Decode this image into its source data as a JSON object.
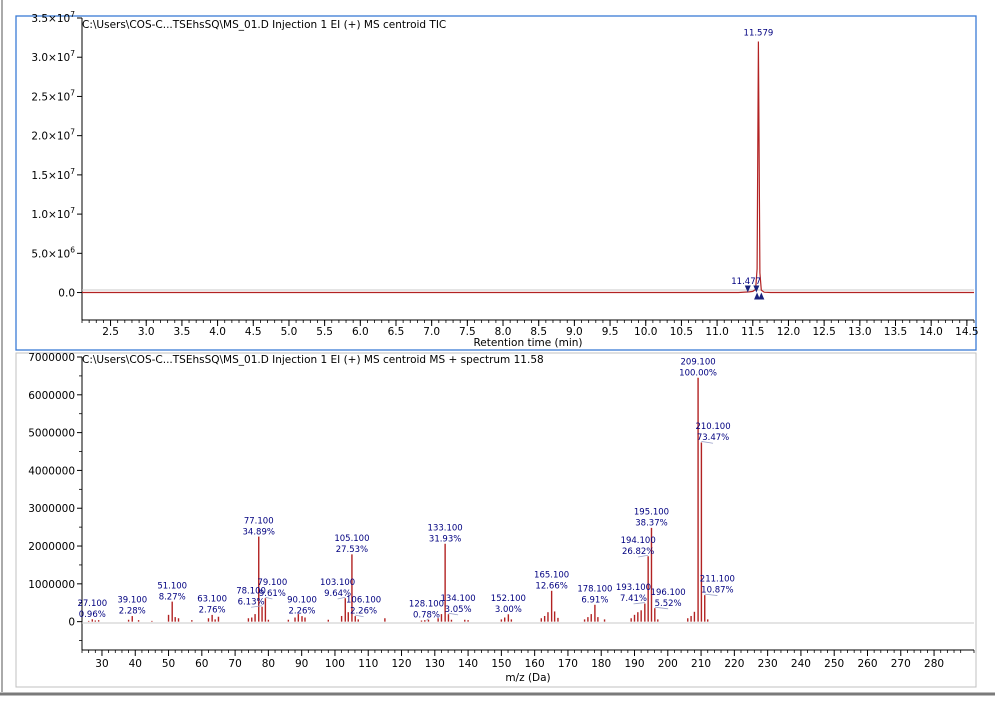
{
  "colors": {
    "trace": "#b22222",
    "label": "#000080",
    "marker": "#1a237e",
    "panel_border": "#3a7bd5"
  },
  "chart_data": [
    {
      "type": "line",
      "title": "C:\\Users\\COS-C...TSEhsSQ\\MS_01.D Injection 1 EI (+) MS centroid TIC",
      "xlabel": "Retention time (min)",
      "ylabel": "",
      "xlim": [
        2.1,
        14.6
      ],
      "ylim": [
        -3500000,
        35000000
      ],
      "x_ticks": [
        2.5,
        3.0,
        3.5,
        4.0,
        4.5,
        5.0,
        5.5,
        6.0,
        6.5,
        7.0,
        7.5,
        8.0,
        8.5,
        9.0,
        9.5,
        10.0,
        10.5,
        11.0,
        11.5,
        12.0,
        12.5,
        13.0,
        13.5,
        14.0,
        14.5
      ],
      "x_tick_labels": [
        "2.5",
        "3.0",
        "3.5",
        "4.0",
        "4.5",
        "5.0",
        "5.5",
        "6.0",
        "6.5",
        "7.0",
        "7.5",
        "8.0",
        "8.5",
        "9.0",
        "9.5",
        "10.0",
        "10.5",
        "11.0",
        "11.5",
        "12.0",
        "12.5",
        "13.0",
        "13.5",
        "14.0",
        "14.5"
      ],
      "y_ticks": [
        {
          "value": 35000000,
          "mant": "3.5",
          "exp": "7"
        },
        {
          "value": 30000000,
          "mant": "3.0",
          "exp": "7"
        },
        {
          "value": 25000000,
          "mant": "2.5",
          "exp": "7"
        },
        {
          "value": 20000000,
          "mant": "2.0",
          "exp": "7"
        },
        {
          "value": 15000000,
          "mant": "1.5",
          "exp": "7"
        },
        {
          "value": 10000000,
          "mant": "1.0",
          "exp": "7"
        },
        {
          "value": 5000000,
          "mant": "5.0",
          "exp": "6"
        },
        {
          "value": 0,
          "mant": "0.0",
          "exp": ""
        }
      ],
      "series": [
        {
          "x": [
            2.1,
            11.3,
            11.45,
            11.5,
            11.54,
            11.56,
            11.579,
            11.6,
            11.62,
            11.66,
            11.75,
            14.6
          ],
          "y": [
            0,
            0,
            80000,
            150000,
            400000,
            3000000,
            32000000,
            2500000,
            300000,
            50000,
            0,
            0
          ]
        }
      ],
      "annotations": [
        {
          "x": 11.579,
          "y": 32000000,
          "text": "11.579"
        },
        {
          "x": 11.477,
          "y": 300000,
          "text": "11.477"
        }
      ],
      "integration_markers": [
        {
          "x": 11.43,
          "y": 0,
          "dir": "down"
        },
        {
          "x": 11.55,
          "y": 0,
          "dir": "down"
        },
        {
          "x": 11.56,
          "y": 0,
          "dir": "up"
        },
        {
          "x": 11.62,
          "y": 0,
          "dir": "up"
        }
      ]
    },
    {
      "type": "bar",
      "title": "C:\\Users\\COS-C...TSEhsSQ\\MS_01.D Injection 1 EI (+) MS centroid MS + spectrum 11.58",
      "xlabel": "m/z (Da)",
      "ylabel": "",
      "xlim": [
        24,
        292
      ],
      "ylim": [
        -750000,
        7000000
      ],
      "x_ticks": [
        30,
        40,
        50,
        60,
        70,
        80,
        90,
        100,
        110,
        120,
        130,
        140,
        150,
        160,
        170,
        180,
        190,
        200,
        210,
        220,
        230,
        240,
        250,
        260,
        270,
        280
      ],
      "x_tick_labels": [
        "30",
        "40",
        "50",
        "60",
        "70",
        "80",
        "90",
        "100",
        "110",
        "120",
        "130",
        "140",
        "150",
        "160",
        "170",
        "180",
        "190",
        "200",
        "210",
        "220",
        "230",
        "240",
        "250",
        "260",
        "270",
        "280"
      ],
      "y_ticks": [
        7000000,
        6000000,
        5000000,
        4000000,
        3000000,
        2000000,
        1000000,
        0
      ],
      "y_tick_labels": [
        "7000000",
        "6000000",
        "5000000",
        "4000000",
        "3000000",
        "2000000",
        "1000000",
        "0"
      ],
      "peaks": [
        {
          "mz": 26,
          "intensity": 20000
        },
        {
          "mz": 27.1,
          "intensity": 62000
        },
        {
          "mz": 28,
          "intensity": 30000
        },
        {
          "mz": 29,
          "intensity": 40000
        },
        {
          "mz": 38,
          "intensity": 50000
        },
        {
          "mz": 39.1,
          "intensity": 147000
        },
        {
          "mz": 41,
          "intensity": 40000
        },
        {
          "mz": 45,
          "intensity": 20000
        },
        {
          "mz": 50,
          "intensity": 180000
        },
        {
          "mz": 51.1,
          "intensity": 530000
        },
        {
          "mz": 52,
          "intensity": 120000
        },
        {
          "mz": 53,
          "intensity": 90000
        },
        {
          "mz": 57,
          "intensity": 40000
        },
        {
          "mz": 62,
          "intensity": 90000
        },
        {
          "mz": 63.1,
          "intensity": 178000
        },
        {
          "mz": 64,
          "intensity": 60000
        },
        {
          "mz": 65,
          "intensity": 130000
        },
        {
          "mz": 74,
          "intensity": 90000
        },
        {
          "mz": 75,
          "intensity": 110000
        },
        {
          "mz": 76,
          "intensity": 200000
        },
        {
          "mz": 77.1,
          "intensity": 2250000
        },
        {
          "mz": 78.1,
          "intensity": 395000
        },
        {
          "mz": 79.1,
          "intensity": 620000
        },
        {
          "mz": 80,
          "intensity": 50000
        },
        {
          "mz": 86,
          "intensity": 50000
        },
        {
          "mz": 88,
          "intensity": 110000
        },
        {
          "mz": 89,
          "intensity": 200000
        },
        {
          "mz": 90.1,
          "intensity": 146000
        },
        {
          "mz": 91,
          "intensity": 110000
        },
        {
          "mz": 98,
          "intensity": 50000
        },
        {
          "mz": 102,
          "intensity": 150000
        },
        {
          "mz": 103.1,
          "intensity": 620000
        },
        {
          "mz": 104,
          "intensity": 250000
        },
        {
          "mz": 105.1,
          "intensity": 1780000
        },
        {
          "mz": 106.1,
          "intensity": 146000
        },
        {
          "mz": 107,
          "intensity": 60000
        },
        {
          "mz": 115,
          "intensity": 90000
        },
        {
          "mz": 126,
          "intensity": 30000
        },
        {
          "mz": 127,
          "intensity": 40000
        },
        {
          "mz": 128.1,
          "intensity": 50000
        },
        {
          "mz": 131,
          "intensity": 90000
        },
        {
          "mz": 132,
          "intensity": 200000
        },
        {
          "mz": 133.1,
          "intensity": 2060000
        },
        {
          "mz": 134.1,
          "intensity": 197000
        },
        {
          "mz": 135,
          "intensity": 50000
        },
        {
          "mz": 139,
          "intensity": 50000
        },
        {
          "mz": 140,
          "intensity": 40000
        },
        {
          "mz": 150,
          "intensity": 60000
        },
        {
          "mz": 151,
          "intensity": 110000
        },
        {
          "mz": 152.1,
          "intensity": 194000
        },
        {
          "mz": 153,
          "intensity": 60000
        },
        {
          "mz": 162,
          "intensity": 90000
        },
        {
          "mz": 163,
          "intensity": 150000
        },
        {
          "mz": 164,
          "intensity": 250000
        },
        {
          "mz": 165.1,
          "intensity": 816000
        },
        {
          "mz": 166,
          "intensity": 270000
        },
        {
          "mz": 167,
          "intensity": 100000
        },
        {
          "mz": 175,
          "intensity": 60000
        },
        {
          "mz": 176,
          "intensity": 120000
        },
        {
          "mz": 177,
          "intensity": 200000
        },
        {
          "mz": 178.1,
          "intensity": 446000
        },
        {
          "mz": 179,
          "intensity": 120000
        },
        {
          "mz": 181,
          "intensity": 60000
        },
        {
          "mz": 189,
          "intensity": 90000
        },
        {
          "mz": 190,
          "intensity": 180000
        },
        {
          "mz": 191,
          "intensity": 250000
        },
        {
          "mz": 192,
          "intensity": 300000
        },
        {
          "mz": 193.1,
          "intensity": 478000
        },
        {
          "mz": 194.1,
          "intensity": 1730000
        },
        {
          "mz": 195.1,
          "intensity": 2480000
        },
        {
          "mz": 196.1,
          "intensity": 356000
        },
        {
          "mz": 197,
          "intensity": 60000
        },
        {
          "mz": 206,
          "intensity": 90000
        },
        {
          "mz": 207,
          "intensity": 150000
        },
        {
          "mz": 208,
          "intensity": 260000
        },
        {
          "mz": 209.1,
          "intensity": 6450000
        },
        {
          "mz": 210.1,
          "intensity": 4740000
        },
        {
          "mz": 211.1,
          "intensity": 701000
        },
        {
          "mz": 212,
          "intensity": 60000
        }
      ],
      "peak_labels": [
        {
          "mz": 27.1,
          "intensity": 62000,
          "l1": "27.100",
          "l2": "0.96%",
          "lx": 27.1,
          "ly": 415000,
          "lead": 0
        },
        {
          "mz": 39.1,
          "intensity": 147000,
          "l1": "39.100",
          "l2": "2.28%",
          "lx": 39.1,
          "ly": 500000,
          "lead": 0
        },
        {
          "mz": 51.1,
          "intensity": 530000,
          "l1": "51.100",
          "l2": "8.27%",
          "lx": 51.1,
          "ly": 880000,
          "lead": 0
        },
        {
          "mz": 63.1,
          "intensity": 178000,
          "l1": "63.100",
          "l2": "2.76%",
          "lx": 63.1,
          "ly": 530000,
          "lead": 0
        },
        {
          "mz": 77.1,
          "intensity": 2250000,
          "l1": "77.100",
          "l2": "34.89%",
          "lx": 77.1,
          "ly": 2600000,
          "lead": 0
        },
        {
          "mz": 78.1,
          "intensity": 395000,
          "l1": "78.100",
          "l2": "6.13%",
          "lx": 74.8,
          "ly": 750000,
          "lead": 1
        },
        {
          "mz": 79.1,
          "intensity": 620000,
          "l1": "79.100",
          "l2": "9.61%",
          "lx": 81.2,
          "ly": 970000,
          "lead": 1
        },
        {
          "mz": 90.1,
          "intensity": 146000,
          "l1": "90.100",
          "l2": "2.26%",
          "lx": 90.1,
          "ly": 500000,
          "lead": 0
        },
        {
          "mz": 103.1,
          "intensity": 620000,
          "l1": "103.100",
          "l2": "9.64%",
          "lx": 100.8,
          "ly": 970000,
          "lead": 1
        },
        {
          "mz": 105.1,
          "intensity": 1780000,
          "l1": "105.100",
          "l2": "27.53%",
          "lx": 105.1,
          "ly": 2130000,
          "lead": 0
        },
        {
          "mz": 106.1,
          "intensity": 146000,
          "l1": "106.100",
          "l2": "2.26%",
          "lx": 108.6,
          "ly": 500000,
          "lead": 1
        },
        {
          "mz": 128.1,
          "intensity": 50000,
          "l1": "128.100",
          "l2": "0.78%",
          "lx": 127.5,
          "ly": 405000,
          "lead": 1
        },
        {
          "mz": 133.1,
          "intensity": 2060000,
          "l1": "133.100",
          "l2": "31.93%",
          "lx": 133.1,
          "ly": 2410000,
          "lead": 0
        },
        {
          "mz": 134.1,
          "intensity": 197000,
          "l1": "134.100",
          "l2": "3.05%",
          "lx": 137.0,
          "ly": 550000,
          "lead": 1
        },
        {
          "mz": 152.1,
          "intensity": 194000,
          "l1": "152.100",
          "l2": "3.00%",
          "lx": 152.1,
          "ly": 550000,
          "lead": 0
        },
        {
          "mz": 165.1,
          "intensity": 816000,
          "l1": "165.100",
          "l2": "12.66%",
          "lx": 165.1,
          "ly": 1170000,
          "lead": 0
        },
        {
          "mz": 178.1,
          "intensity": 446000,
          "l1": "178.100",
          "l2": "6.91%",
          "lx": 178.1,
          "ly": 800000,
          "lead": 0
        },
        {
          "mz": 193.1,
          "intensity": 478000,
          "l1": "193.100",
          "l2": "7.41%",
          "lx": 189.7,
          "ly": 840000,
          "lead": 1
        },
        {
          "mz": 194.1,
          "intensity": 1730000,
          "l1": "194.100",
          "l2": "26.82%",
          "lx": 191.1,
          "ly": 2080000,
          "lead": 1
        },
        {
          "mz": 195.1,
          "intensity": 2480000,
          "l1": "195.100",
          "l2": "38.37%",
          "lx": 195.1,
          "ly": 2830000,
          "lead": 0
        },
        {
          "mz": 196.1,
          "intensity": 356000,
          "l1": "196.100",
          "l2": "5.52%",
          "lx": 200.1,
          "ly": 710000,
          "lead": 1
        },
        {
          "mz": 209.1,
          "intensity": 6450000,
          "l1": "209.100",
          "l2": "100.00%",
          "lx": 209.1,
          "ly": 6800000,
          "lead": 0
        },
        {
          "mz": 210.1,
          "intensity": 4740000,
          "l1": "210.100",
          "l2": "73.47%",
          "lx": 213.6,
          "ly": 5090000,
          "lead": 1
        },
        {
          "mz": 211.1,
          "intensity": 701000,
          "l1": "211.100",
          "l2": "10.87%",
          "lx": 214.9,
          "ly": 1060000,
          "lead": 1
        }
      ]
    }
  ]
}
